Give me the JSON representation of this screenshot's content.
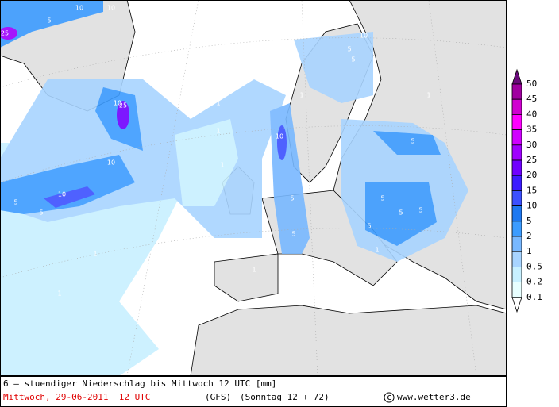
{
  "footer": {
    "line1": "6 – stuendiger Niederschlag bis Mittwoch 12 UTC [mm]",
    "date": "Mittwoch, 29-06-2011  12 UTC",
    "model": "(GFS)",
    "run": "(Sonntag 12 + 72)",
    "site": "www.wetter3.de"
  },
  "legend": {
    "labels": [
      "50",
      "45",
      "40",
      "35",
      "30",
      "25",
      "20",
      "15",
      "10",
      "5",
      "2",
      "1",
      "0.5",
      "0.2",
      "0.1"
    ],
    "colors": [
      "#6a0a7a",
      "#a000a0",
      "#d000d0",
      "#ff00ff",
      "#d000ff",
      "#a000ff",
      "#7000ff",
      "#3c1cff",
      "#3c50ff",
      "#1e78f0",
      "#3c9cff",
      "#78b8ff",
      "#a8d4ff",
      "#c8f0ff",
      "#e8ffff",
      "#ffffff"
    ]
  },
  "contour_labels": [
    "25",
    "10",
    "10",
    "5",
    "5",
    "10",
    "25",
    "10",
    "10",
    "5",
    "10",
    "5",
    "5",
    "1",
    "1",
    "1",
    "1",
    "10",
    "5",
    "5",
    "5",
    "5",
    "5",
    "1",
    "1",
    "5",
    "1",
    "1",
    "5",
    "1",
    "1",
    "1"
  ]
}
